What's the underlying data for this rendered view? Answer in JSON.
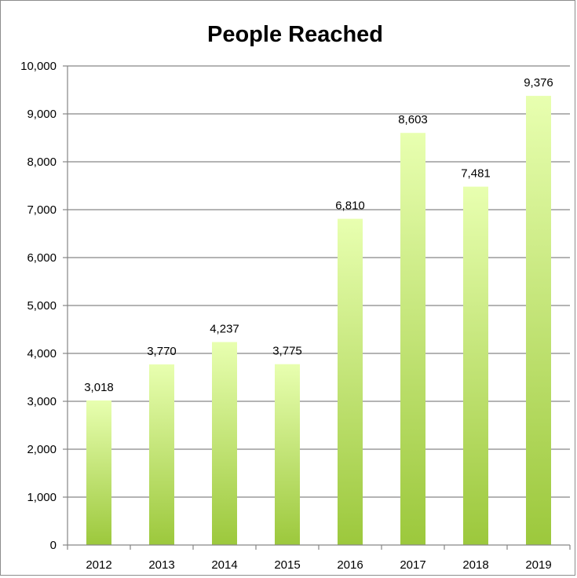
{
  "chart_data": {
    "type": "bar",
    "title": "People Reached",
    "xlabel": "",
    "ylabel": "",
    "categories": [
      "2012",
      "2013",
      "2014",
      "2015",
      "2016",
      "2017",
      "2018",
      "2019"
    ],
    "values": [
      3018,
      3770,
      4237,
      3775,
      6810,
      8603,
      7481,
      9376
    ],
    "value_labels": [
      "3,018",
      "3,770",
      "4,237",
      "3,775",
      "6,810",
      "8,603",
      "7,481",
      "9,376"
    ],
    "ylim": [
      0,
      10000
    ],
    "yticks": [
      0,
      1000,
      2000,
      3000,
      4000,
      5000,
      6000,
      7000,
      8000,
      9000,
      10000
    ],
    "ytick_labels": [
      "0",
      "1,000",
      "2,000",
      "3,000",
      "4,000",
      "5,000",
      "6,000",
      "7,000",
      "8,000",
      "9,000",
      "10,000"
    ],
    "grid": true,
    "legend": "none",
    "colors": {
      "bar_top": "#e8ffb0",
      "bar_bottom": "#9cc83c",
      "grid": "#868686"
    }
  }
}
